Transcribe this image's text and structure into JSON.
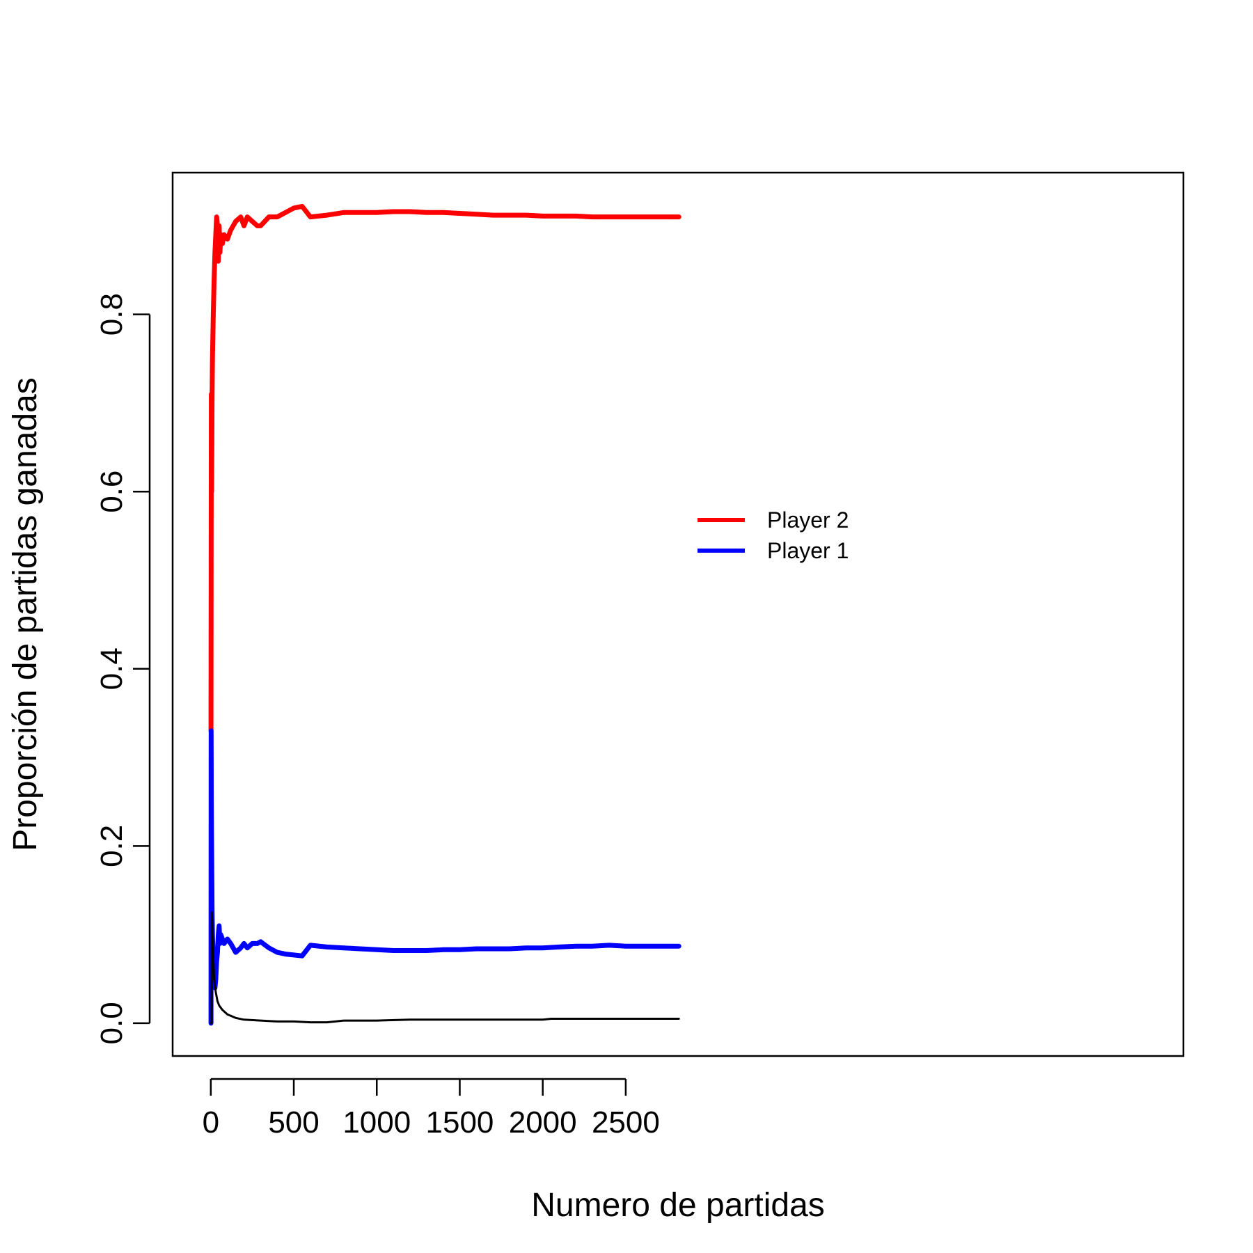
{
  "chart_data": {
    "type": "line",
    "title": "",
    "xlabel": "Numero de partidas",
    "ylabel": "Proporción de partidas ganadas",
    "xlim": [
      -230,
      5860
    ],
    "ylim": [
      -0.037,
      0.96
    ],
    "xticks": [
      0,
      500,
      1000,
      1500,
      2000,
      2500
    ],
    "yticks": [
      0.0,
      0.2,
      0.4,
      0.6,
      0.8
    ],
    "xtick_labels": [
      "0",
      "500",
      "1000",
      "1500",
      "2000",
      "2500"
    ],
    "ytick_labels": [
      "0.0",
      "0.2",
      "0.4",
      "0.6",
      "0.8"
    ],
    "grid": false,
    "legend_position": "center",
    "series": [
      {
        "name": "Player 2",
        "color": "#ff0000",
        "x": [
          1,
          2,
          3,
          5,
          8,
          10,
          15,
          20,
          25,
          30,
          35,
          40,
          45,
          50,
          55,
          60,
          70,
          80,
          100,
          120,
          150,
          180,
          200,
          220,
          250,
          280,
          300,
          350,
          400,
          450,
          500,
          550,
          600,
          700,
          800,
          900,
          1000,
          1100,
          1200,
          1300,
          1400,
          1500,
          1600,
          1700,
          1800,
          1900,
          2000,
          2100,
          2200,
          2300,
          2400,
          2500,
          2600,
          2700,
          2820
        ],
        "y": [
          0.33,
          0.5,
          0.71,
          0.6,
          0.71,
          0.75,
          0.8,
          0.84,
          0.87,
          0.89,
          0.91,
          0.9,
          0.86,
          0.9,
          0.87,
          0.89,
          0.88,
          0.89,
          0.885,
          0.895,
          0.905,
          0.91,
          0.9,
          0.91,
          0.905,
          0.9,
          0.9,
          0.91,
          0.91,
          0.915,
          0.92,
          0.922,
          0.91,
          0.912,
          0.915,
          0.915,
          0.915,
          0.916,
          0.916,
          0.915,
          0.915,
          0.914,
          0.913,
          0.912,
          0.912,
          0.912,
          0.911,
          0.911,
          0.911,
          0.91,
          0.91,
          0.91,
          0.91,
          0.91,
          0.91
        ]
      },
      {
        "name": "Player 1",
        "color": "#0000ff",
        "x": [
          1,
          2,
          3,
          5,
          8,
          10,
          15,
          20,
          25,
          30,
          35,
          40,
          45,
          50,
          55,
          60,
          70,
          80,
          100,
          120,
          150,
          180,
          200,
          220,
          250,
          280,
          300,
          350,
          400,
          450,
          500,
          550,
          600,
          700,
          800,
          900,
          1000,
          1100,
          1200,
          1300,
          1400,
          1500,
          1600,
          1700,
          1800,
          1900,
          2000,
          2100,
          2200,
          2300,
          2400,
          2500,
          2600,
          2700,
          2820
        ],
        "y": [
          0.0,
          0.33,
          0.25,
          0.2,
          0.125,
          0.1,
          0.07,
          0.05,
          0.04,
          0.05,
          0.07,
          0.08,
          0.1,
          0.11,
          0.09,
          0.1,
          0.095,
          0.09,
          0.095,
          0.09,
          0.08,
          0.085,
          0.09,
          0.085,
          0.09,
          0.09,
          0.092,
          0.085,
          0.08,
          0.078,
          0.077,
          0.076,
          0.088,
          0.086,
          0.085,
          0.084,
          0.083,
          0.082,
          0.082,
          0.082,
          0.083,
          0.083,
          0.084,
          0.084,
          0.084,
          0.085,
          0.085,
          0.086,
          0.087,
          0.087,
          0.088,
          0.087,
          0.087,
          0.087,
          0.087
        ]
      },
      {
        "name": "",
        "color": "#000000",
        "x": [
          1,
          2,
          3,
          5,
          6,
          8,
          10,
          15,
          20,
          30,
          40,
          50,
          70,
          100,
          150,
          200,
          300,
          400,
          500,
          600,
          700,
          750,
          800,
          1000,
          1200,
          1500,
          1800,
          2000,
          2050,
          2200,
          2500,
          2820
        ],
        "y": [
          0.0,
          0.0,
          0.0,
          0.0,
          0.125,
          0.12,
          0.1,
          0.075,
          0.05,
          0.035,
          0.025,
          0.02,
          0.015,
          0.01,
          0.006,
          0.004,
          0.003,
          0.002,
          0.002,
          0.001,
          0.001,
          0.002,
          0.003,
          0.003,
          0.004,
          0.004,
          0.004,
          0.004,
          0.005,
          0.005,
          0.005,
          0.005
        ]
      }
    ]
  }
}
